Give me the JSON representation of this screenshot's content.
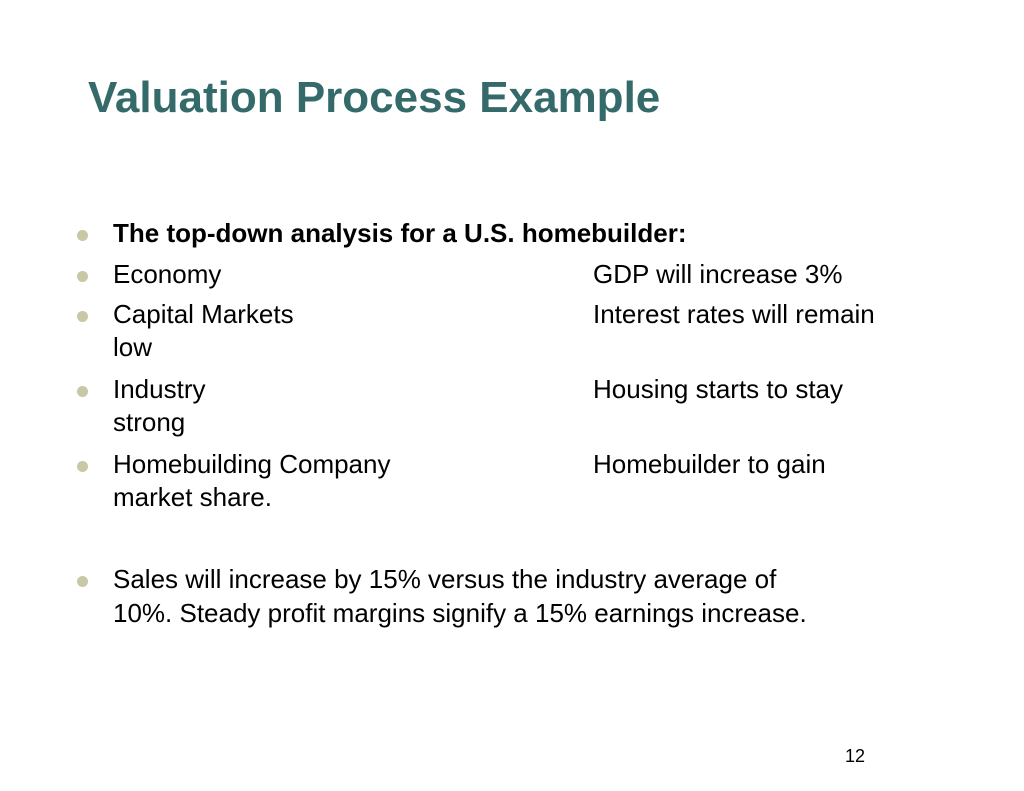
{
  "slide": {
    "title": "Valuation Process Example",
    "page_number": "12",
    "bullet_color": "#c8c8a6",
    "title_color": "#356a6a"
  },
  "bullets": [
    {
      "text": "The top-down analysis for a U.S. homebuilder:",
      "bold": true
    },
    {
      "label": "Economy",
      "detail": "GDP will increase 3%"
    },
    {
      "label": "Capital Markets",
      "detail": "Interest rates will remain",
      "continuation": "low"
    },
    {
      "label": "Industry",
      "detail": "Housing starts to stay",
      "continuation": "strong"
    },
    {
      "label": "Homebuilding Company",
      "detail": "Homebuilder to gain",
      "continuation": "market share."
    },
    {
      "line1": "Sales will increase by 15% versus the industry average of",
      "line2": "10%.  Steady profit margins signify a 15% earnings increase."
    }
  ]
}
